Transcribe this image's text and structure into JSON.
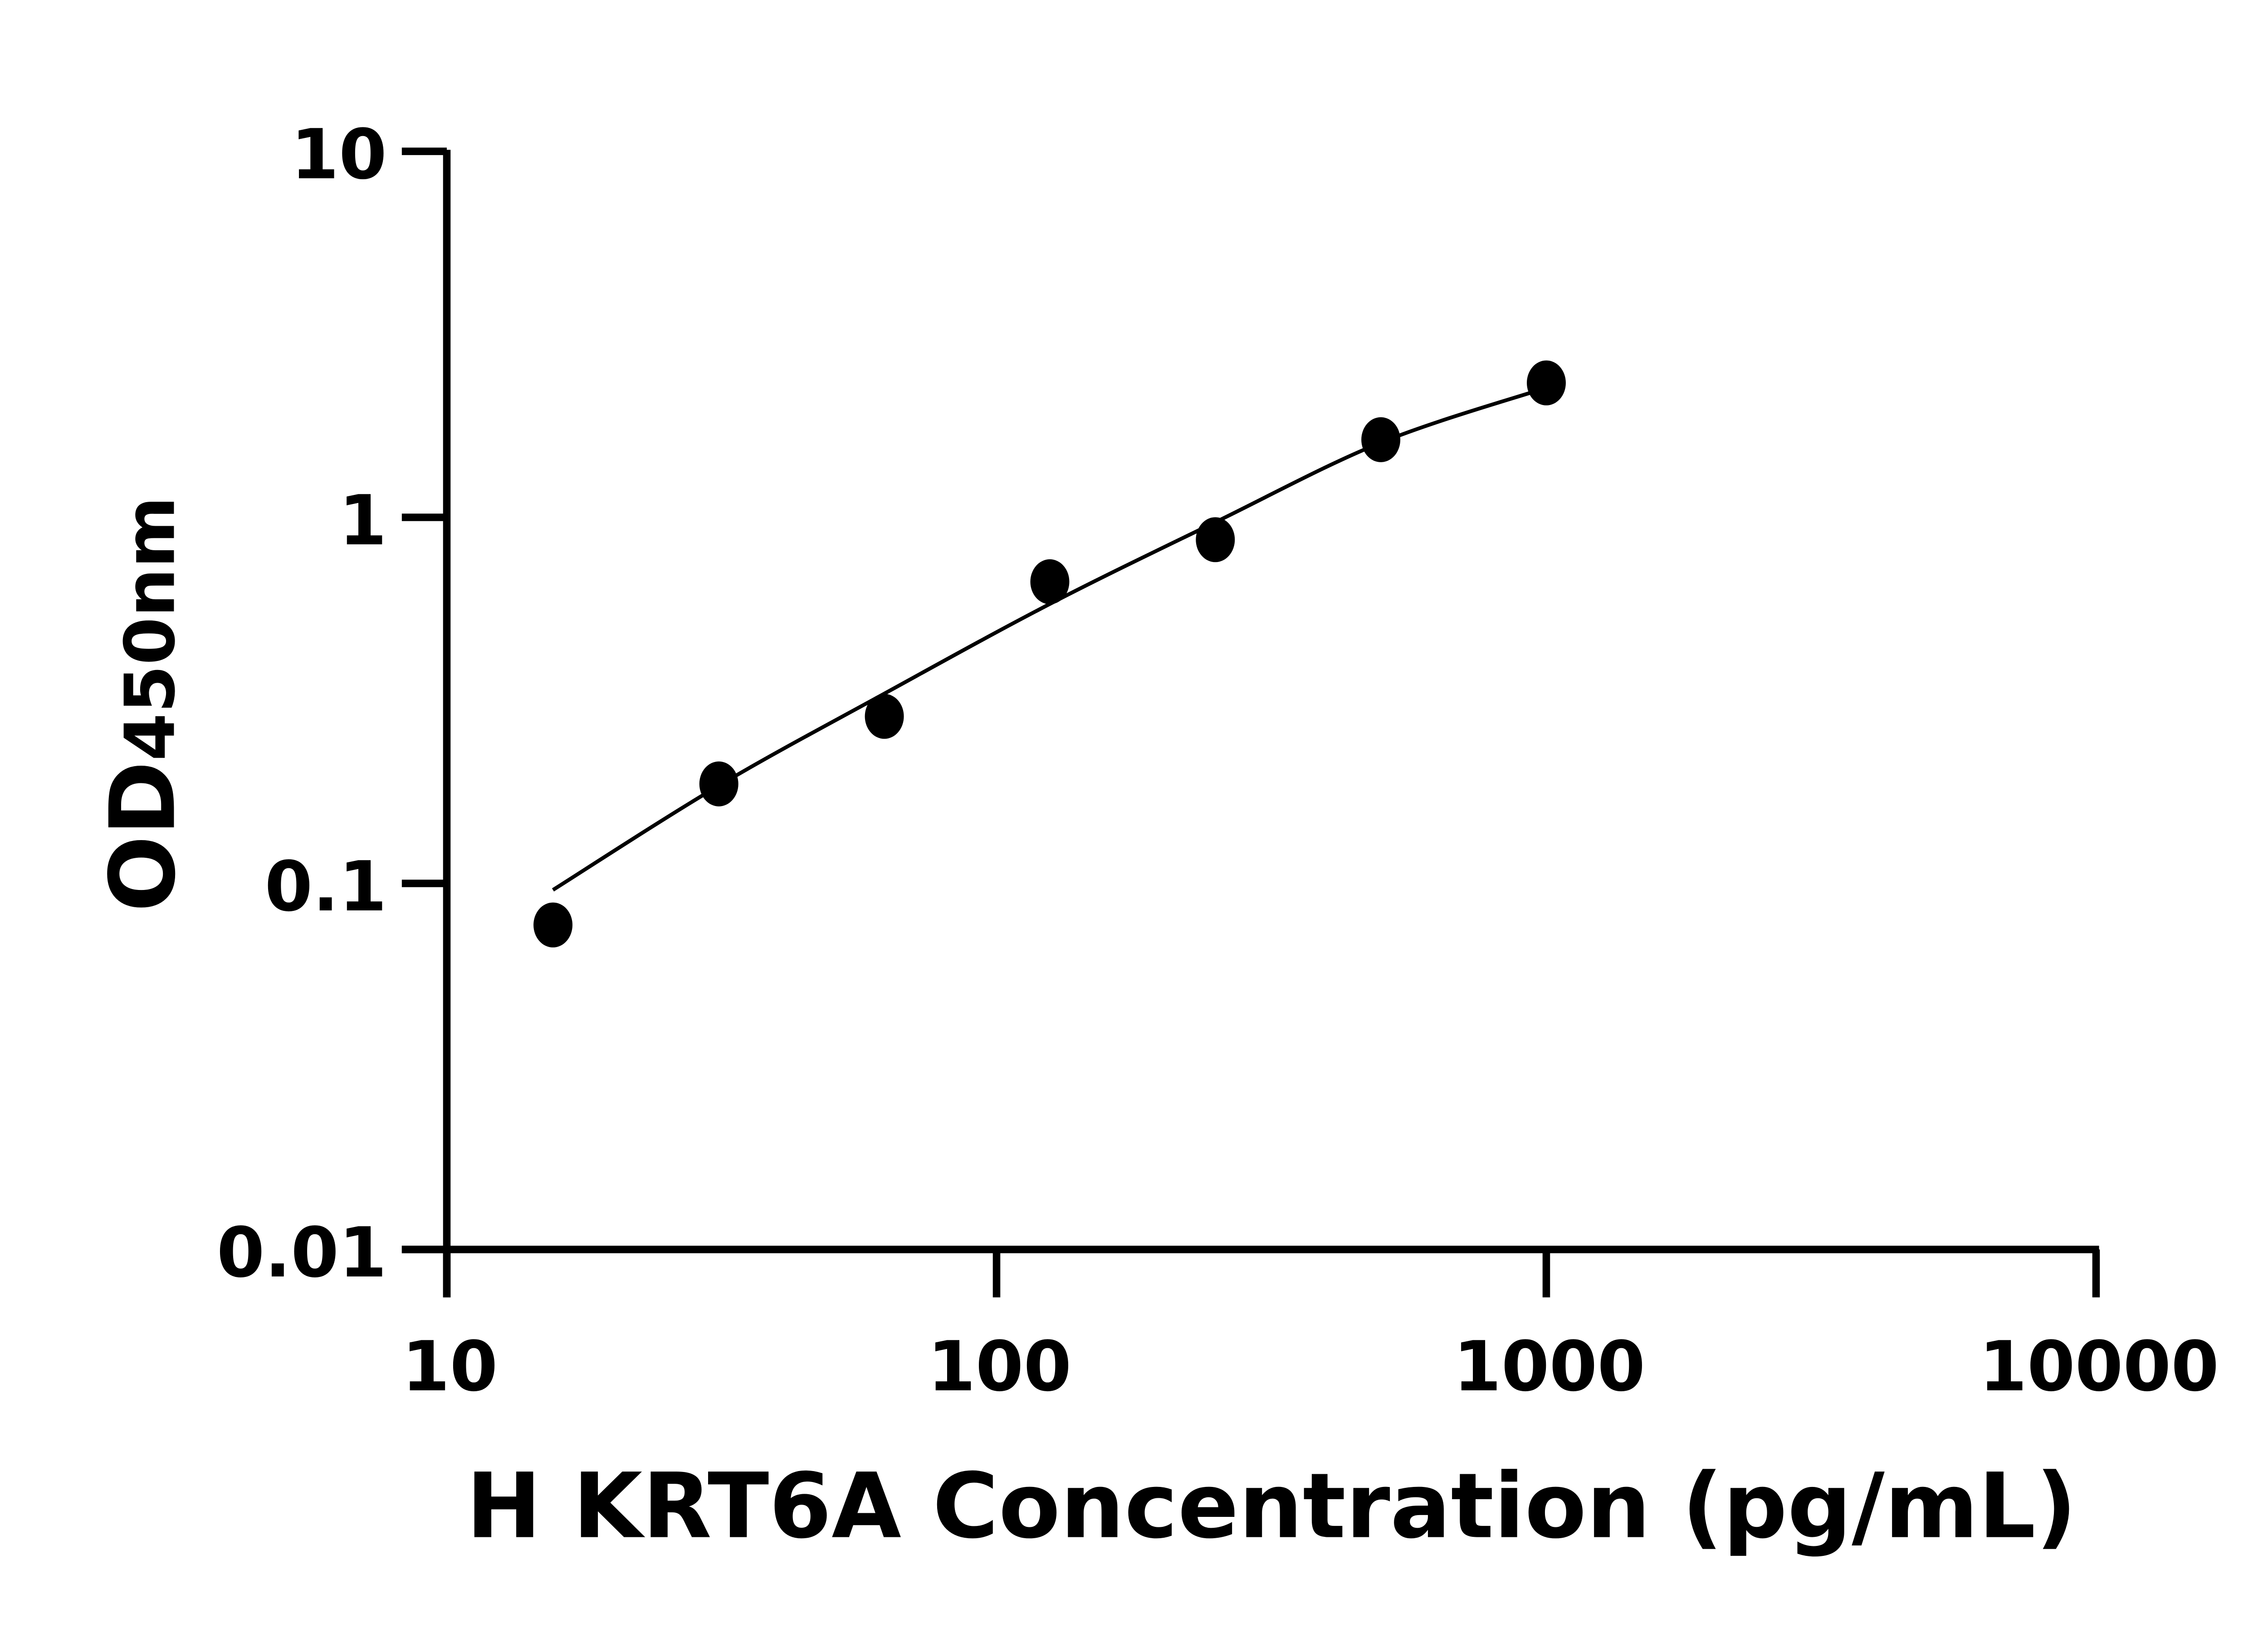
{
  "chart_data": {
    "type": "scatter",
    "title": "",
    "xlabel": "H KRT6A Concentration (pg/mL)",
    "ylabel_main": "OD",
    "ylabel_sub": "450nm",
    "x_scale": "log",
    "y_scale": "log",
    "xlim": [
      10,
      10000
    ],
    "ylim": [
      0.01,
      10
    ],
    "x_ticks": [
      "10",
      "100",
      "1000",
      "10000"
    ],
    "y_ticks": [
      "0.01",
      "0.1",
      "1",
      "10"
    ],
    "grid": false,
    "points": {
      "x": [
        15.6,
        31.25,
        62.5,
        125,
        250,
        500,
        1000
      ],
      "y": [
        0.077,
        0.187,
        0.286,
        0.667,
        0.869,
        1.63,
        2.33
      ]
    },
    "fit_curve": {
      "x": [
        15.6,
        31.25,
        62.5,
        125,
        250,
        500,
        1000
      ],
      "y": [
        0.096,
        0.185,
        0.33,
        0.58,
        0.97,
        1.6,
        2.26
      ]
    },
    "colors": {
      "marks": "#000000",
      "axes": "#000000"
    }
  }
}
